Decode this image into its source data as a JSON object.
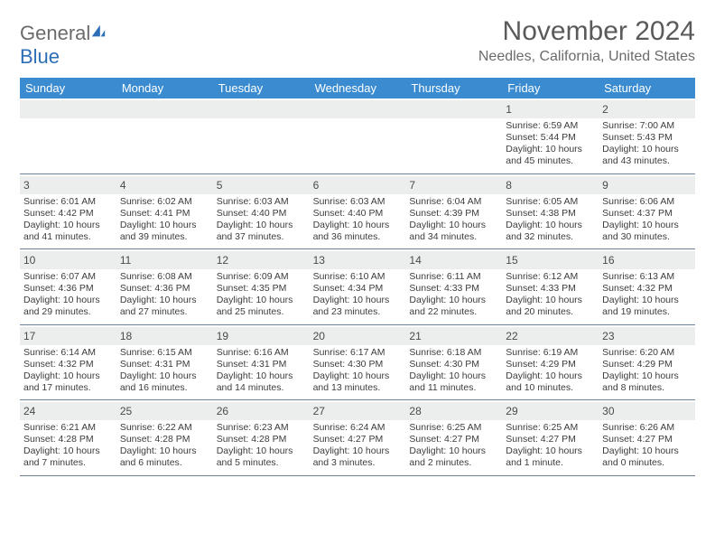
{
  "logo": {
    "part1": "General",
    "part2": "Blue"
  },
  "title": "November 2024",
  "location": "Needles, California, United States",
  "day_headers": [
    "Sunday",
    "Monday",
    "Tuesday",
    "Wednesday",
    "Thursday",
    "Friday",
    "Saturday"
  ],
  "colors": {
    "header_bg": "#3a8bd0",
    "header_text": "#ffffff",
    "daynum_bg": "#eceded",
    "border": "#6b8299",
    "title_color": "#5a5a5a",
    "body_text": "#3c3c3c"
  },
  "weeks": [
    [
      {
        "empty": true
      },
      {
        "empty": true
      },
      {
        "empty": true
      },
      {
        "empty": true
      },
      {
        "empty": true
      },
      {
        "day": "1",
        "sunrise": "Sunrise: 6:59 AM",
        "sunset": "Sunset: 5:44 PM",
        "daylight": "Daylight: 10 hours and 45 minutes."
      },
      {
        "day": "2",
        "sunrise": "Sunrise: 7:00 AM",
        "sunset": "Sunset: 5:43 PM",
        "daylight": "Daylight: 10 hours and 43 minutes."
      }
    ],
    [
      {
        "day": "3",
        "sunrise": "Sunrise: 6:01 AM",
        "sunset": "Sunset: 4:42 PM",
        "daylight": "Daylight: 10 hours and 41 minutes."
      },
      {
        "day": "4",
        "sunrise": "Sunrise: 6:02 AM",
        "sunset": "Sunset: 4:41 PM",
        "daylight": "Daylight: 10 hours and 39 minutes."
      },
      {
        "day": "5",
        "sunrise": "Sunrise: 6:03 AM",
        "sunset": "Sunset: 4:40 PM",
        "daylight": "Daylight: 10 hours and 37 minutes."
      },
      {
        "day": "6",
        "sunrise": "Sunrise: 6:03 AM",
        "sunset": "Sunset: 4:40 PM",
        "daylight": "Daylight: 10 hours and 36 minutes."
      },
      {
        "day": "7",
        "sunrise": "Sunrise: 6:04 AM",
        "sunset": "Sunset: 4:39 PM",
        "daylight": "Daylight: 10 hours and 34 minutes."
      },
      {
        "day": "8",
        "sunrise": "Sunrise: 6:05 AM",
        "sunset": "Sunset: 4:38 PM",
        "daylight": "Daylight: 10 hours and 32 minutes."
      },
      {
        "day": "9",
        "sunrise": "Sunrise: 6:06 AM",
        "sunset": "Sunset: 4:37 PM",
        "daylight": "Daylight: 10 hours and 30 minutes."
      }
    ],
    [
      {
        "day": "10",
        "sunrise": "Sunrise: 6:07 AM",
        "sunset": "Sunset: 4:36 PM",
        "daylight": "Daylight: 10 hours and 29 minutes."
      },
      {
        "day": "11",
        "sunrise": "Sunrise: 6:08 AM",
        "sunset": "Sunset: 4:36 PM",
        "daylight": "Daylight: 10 hours and 27 minutes."
      },
      {
        "day": "12",
        "sunrise": "Sunrise: 6:09 AM",
        "sunset": "Sunset: 4:35 PM",
        "daylight": "Daylight: 10 hours and 25 minutes."
      },
      {
        "day": "13",
        "sunrise": "Sunrise: 6:10 AM",
        "sunset": "Sunset: 4:34 PM",
        "daylight": "Daylight: 10 hours and 23 minutes."
      },
      {
        "day": "14",
        "sunrise": "Sunrise: 6:11 AM",
        "sunset": "Sunset: 4:33 PM",
        "daylight": "Daylight: 10 hours and 22 minutes."
      },
      {
        "day": "15",
        "sunrise": "Sunrise: 6:12 AM",
        "sunset": "Sunset: 4:33 PM",
        "daylight": "Daylight: 10 hours and 20 minutes."
      },
      {
        "day": "16",
        "sunrise": "Sunrise: 6:13 AM",
        "sunset": "Sunset: 4:32 PM",
        "daylight": "Daylight: 10 hours and 19 minutes."
      }
    ],
    [
      {
        "day": "17",
        "sunrise": "Sunrise: 6:14 AM",
        "sunset": "Sunset: 4:32 PM",
        "daylight": "Daylight: 10 hours and 17 minutes."
      },
      {
        "day": "18",
        "sunrise": "Sunrise: 6:15 AM",
        "sunset": "Sunset: 4:31 PM",
        "daylight": "Daylight: 10 hours and 16 minutes."
      },
      {
        "day": "19",
        "sunrise": "Sunrise: 6:16 AM",
        "sunset": "Sunset: 4:31 PM",
        "daylight": "Daylight: 10 hours and 14 minutes."
      },
      {
        "day": "20",
        "sunrise": "Sunrise: 6:17 AM",
        "sunset": "Sunset: 4:30 PM",
        "daylight": "Daylight: 10 hours and 13 minutes."
      },
      {
        "day": "21",
        "sunrise": "Sunrise: 6:18 AM",
        "sunset": "Sunset: 4:30 PM",
        "daylight": "Daylight: 10 hours and 11 minutes."
      },
      {
        "day": "22",
        "sunrise": "Sunrise: 6:19 AM",
        "sunset": "Sunset: 4:29 PM",
        "daylight": "Daylight: 10 hours and 10 minutes."
      },
      {
        "day": "23",
        "sunrise": "Sunrise: 6:20 AM",
        "sunset": "Sunset: 4:29 PM",
        "daylight": "Daylight: 10 hours and 8 minutes."
      }
    ],
    [
      {
        "day": "24",
        "sunrise": "Sunrise: 6:21 AM",
        "sunset": "Sunset: 4:28 PM",
        "daylight": "Daylight: 10 hours and 7 minutes."
      },
      {
        "day": "25",
        "sunrise": "Sunrise: 6:22 AM",
        "sunset": "Sunset: 4:28 PM",
        "daylight": "Daylight: 10 hours and 6 minutes."
      },
      {
        "day": "26",
        "sunrise": "Sunrise: 6:23 AM",
        "sunset": "Sunset: 4:28 PM",
        "daylight": "Daylight: 10 hours and 5 minutes."
      },
      {
        "day": "27",
        "sunrise": "Sunrise: 6:24 AM",
        "sunset": "Sunset: 4:27 PM",
        "daylight": "Daylight: 10 hours and 3 minutes."
      },
      {
        "day": "28",
        "sunrise": "Sunrise: 6:25 AM",
        "sunset": "Sunset: 4:27 PM",
        "daylight": "Daylight: 10 hours and 2 minutes."
      },
      {
        "day": "29",
        "sunrise": "Sunrise: 6:25 AM",
        "sunset": "Sunset: 4:27 PM",
        "daylight": "Daylight: 10 hours and 1 minute."
      },
      {
        "day": "30",
        "sunrise": "Sunrise: 6:26 AM",
        "sunset": "Sunset: 4:27 PM",
        "daylight": "Daylight: 10 hours and 0 minutes."
      }
    ]
  ]
}
